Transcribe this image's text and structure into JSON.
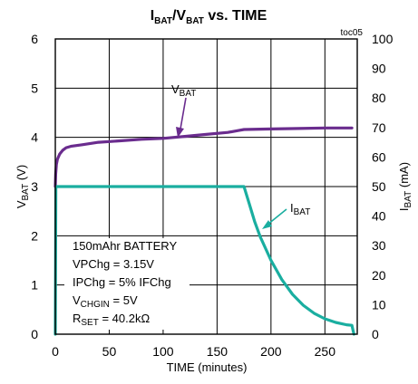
{
  "chart_data": {
    "type": "line",
    "title": "IBAT/VBAT vs. TIME",
    "title_parts": {
      "i": "I",
      "i_sub": "BAT",
      "sep": "/V",
      "v_sub": "BAT",
      "rest": " vs. TIME"
    },
    "toc": "toc05",
    "xlabel": "TIME (minutes)",
    "ylabel_left": {
      "main": "V",
      "sub": "BAT",
      "unit": " (V)"
    },
    "ylabel_right": {
      "main": "I",
      "sub": "BAT",
      "unit": " (mA)"
    },
    "xlim": [
      0,
      280
    ],
    "ylim_left": [
      0,
      6
    ],
    "ylim_right": [
      0,
      100
    ],
    "x_ticks": [
      "0",
      "50",
      "100",
      "150",
      "200",
      "250"
    ],
    "y_left_ticks": [
      "0",
      "1",
      "2",
      "3",
      "4",
      "5",
      "6"
    ],
    "y_right_ticks": [
      "0",
      "10",
      "20",
      "30",
      "40",
      "50",
      "60",
      "70",
      "80",
      "90",
      "100"
    ],
    "grid": true,
    "series": [
      {
        "name": "VBAT",
        "label_main": "V",
        "label_sub": "BAT",
        "axis": "left",
        "color": "#6a2c8e",
        "x": [
          0,
          0.3,
          1,
          2,
          4,
          7,
          10,
          15,
          25,
          40,
          60,
          80,
          100,
          120,
          140,
          160,
          170,
          175,
          200,
          225,
          250,
          275
        ],
        "y": [
          3.0,
          3.25,
          3.45,
          3.56,
          3.66,
          3.74,
          3.79,
          3.82,
          3.85,
          3.9,
          3.93,
          3.96,
          3.98,
          4.02,
          4.06,
          4.1,
          4.14,
          4.16,
          4.17,
          4.18,
          4.19,
          4.19
        ]
      },
      {
        "name": "IBAT",
        "label_main": "I",
        "label_sub": "BAT",
        "axis": "right",
        "color": "#1aaea0",
        "x": [
          0,
          0.5,
          1,
          50,
          100,
          150,
          175,
          180,
          185,
          190,
          200,
          210,
          220,
          230,
          240,
          250,
          260,
          270,
          275,
          276,
          277
        ],
        "y": [
          0,
          49.5,
          50,
          50,
          50,
          50,
          50,
          44,
          38,
          33,
          25,
          18.5,
          13.5,
          9.8,
          7.1,
          5.2,
          4.0,
          3.2,
          3.0,
          1.5,
          0
        ]
      }
    ],
    "annotation": {
      "line1": "150mAhr BATTERY",
      "line2": "VPChg = 3.15V",
      "line3": "IPChg = 5% IFChg",
      "line4_main": "V",
      "line4_sub": "CHGIN",
      "line4_rest": " = 5V",
      "line5_main": "R",
      "line5_sub": "SET",
      "line5_rest": " = 40.2kΩ"
    }
  }
}
